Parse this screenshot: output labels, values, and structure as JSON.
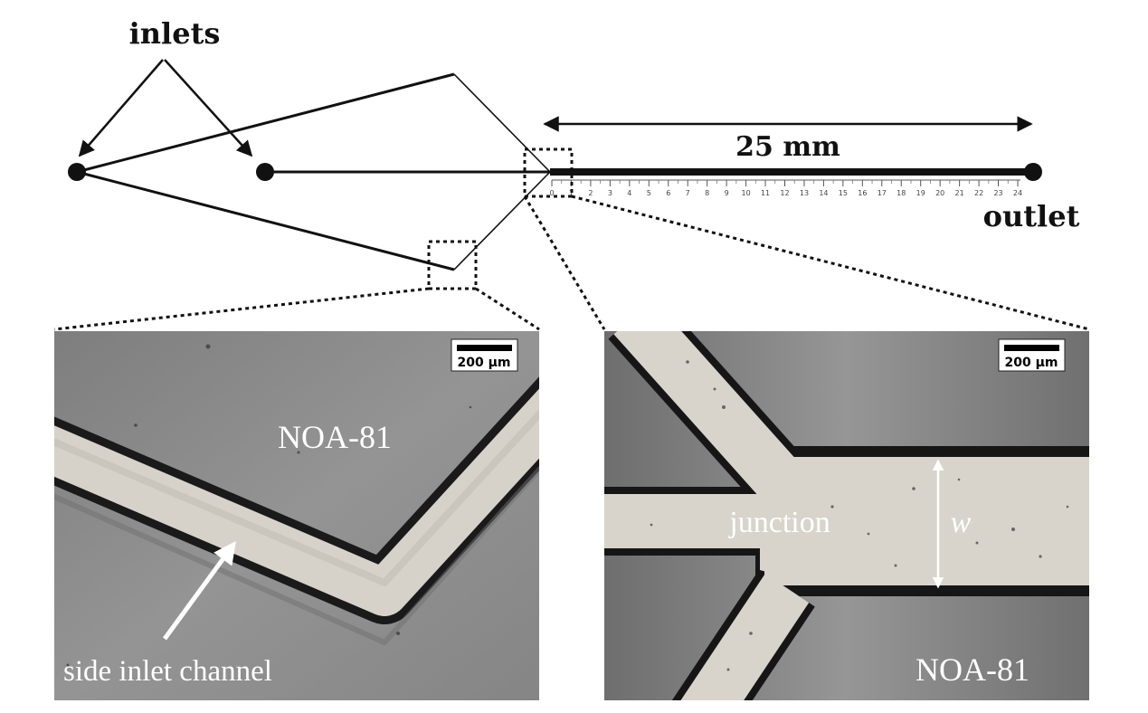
{
  "schematic": {
    "inlets_label": "inlets",
    "outlet_label": "outlet",
    "length_label": "25 mm",
    "ruler_ticks": [
      "0",
      "1",
      "2",
      "3",
      "4",
      "5",
      "6",
      "7",
      "8",
      "9",
      "10",
      "11",
      "12",
      "13",
      "14",
      "15",
      "16",
      "17",
      "18",
      "19",
      "20",
      "21",
      "22",
      "23",
      "24"
    ]
  },
  "left_micrograph": {
    "material_label": "NOA-81",
    "channel_label": "side inlet channel",
    "scale_bar_label": "200 µm"
  },
  "right_micrograph": {
    "material_label": "NOA-81",
    "junction_label": "junction",
    "width_label": "w",
    "scale_bar_label": "200 µm"
  },
  "colors": {
    "line": "#111111",
    "micrograph_background": "#8a8a8a",
    "channel_fill": "#d4d0c8",
    "annotation_text": "#ffffff"
  }
}
